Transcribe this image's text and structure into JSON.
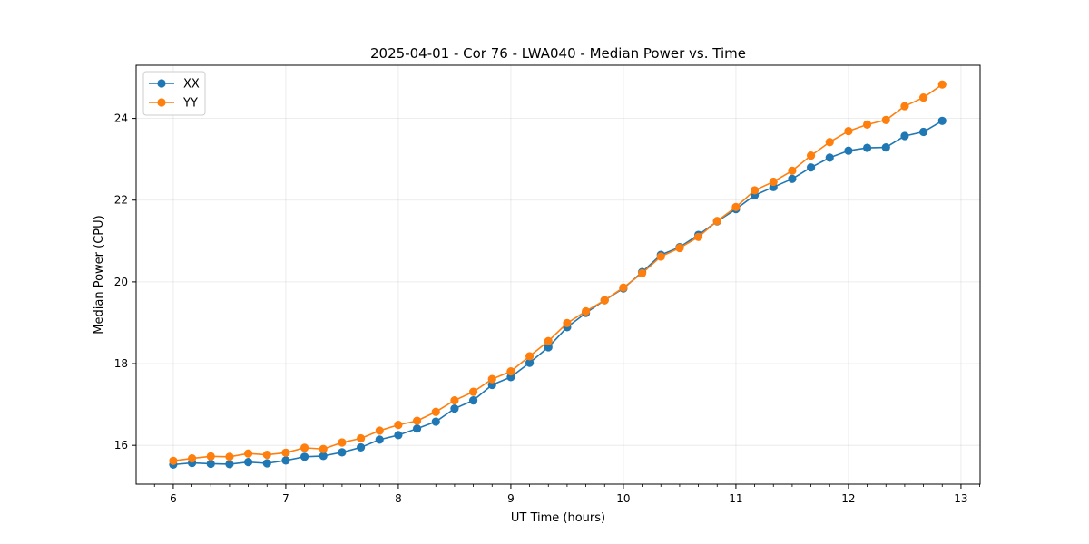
{
  "chart_data": {
    "type": "line",
    "title": "2025-04-01 - Cor 76 - LWA040 - Median Power vs. Time",
    "xlabel": "UT Time (hours)",
    "ylabel": "Median Power (CPU)",
    "xlim": [
      5.67,
      13.17
    ],
    "ylim": [
      15.05,
      25.3
    ],
    "xticks": [
      6,
      7,
      8,
      9,
      10,
      11,
      12,
      13
    ],
    "yticks": [
      16,
      18,
      20,
      22,
      24
    ],
    "grid": true,
    "legend_position": "top-left",
    "x": [
      6.0,
      6.1667,
      6.3333,
      6.5,
      6.6667,
      6.8333,
      7.0,
      7.1667,
      7.3333,
      7.5,
      7.6667,
      7.8333,
      8.0,
      8.1667,
      8.3333,
      8.5,
      8.6667,
      8.8333,
      9.0,
      9.1667,
      9.3333,
      9.5,
      9.6667,
      9.8333,
      10.0,
      10.1667,
      10.3333,
      10.5,
      10.6667,
      10.8333,
      11.0,
      11.1667,
      11.3333,
      11.5,
      11.6667,
      11.8333,
      12.0,
      12.1667,
      12.3333,
      12.5,
      12.6667,
      12.8333
    ],
    "series": [
      {
        "name": "XX",
        "color": "#1f77b4",
        "values": [
          15.53,
          15.57,
          15.55,
          15.54,
          15.59,
          15.56,
          15.63,
          15.72,
          15.74,
          15.83,
          15.95,
          16.14,
          16.25,
          16.41,
          16.58,
          16.9,
          17.1,
          17.48,
          17.67,
          18.02,
          18.4,
          18.89,
          19.24,
          19.55,
          19.84,
          20.24,
          20.66,
          20.85,
          21.15,
          21.48,
          21.78,
          22.12,
          22.32,
          22.52,
          22.8,
          23.04,
          23.21,
          23.28,
          23.29,
          23.57,
          23.67,
          23.94
        ]
      },
      {
        "name": "YY",
        "color": "#ff7f0e",
        "values": [
          15.62,
          15.68,
          15.73,
          15.72,
          15.8,
          15.77,
          15.82,
          15.94,
          15.91,
          16.07,
          16.17,
          16.36,
          16.5,
          16.6,
          16.82,
          17.1,
          17.31,
          17.62,
          17.81,
          18.18,
          18.55,
          18.99,
          19.28,
          19.55,
          19.86,
          20.21,
          20.62,
          20.83,
          21.1,
          21.49,
          21.83,
          22.24,
          22.45,
          22.72,
          23.09,
          23.42,
          23.69,
          23.85,
          23.96,
          24.3,
          24.51,
          24.83
        ]
      }
    ]
  }
}
